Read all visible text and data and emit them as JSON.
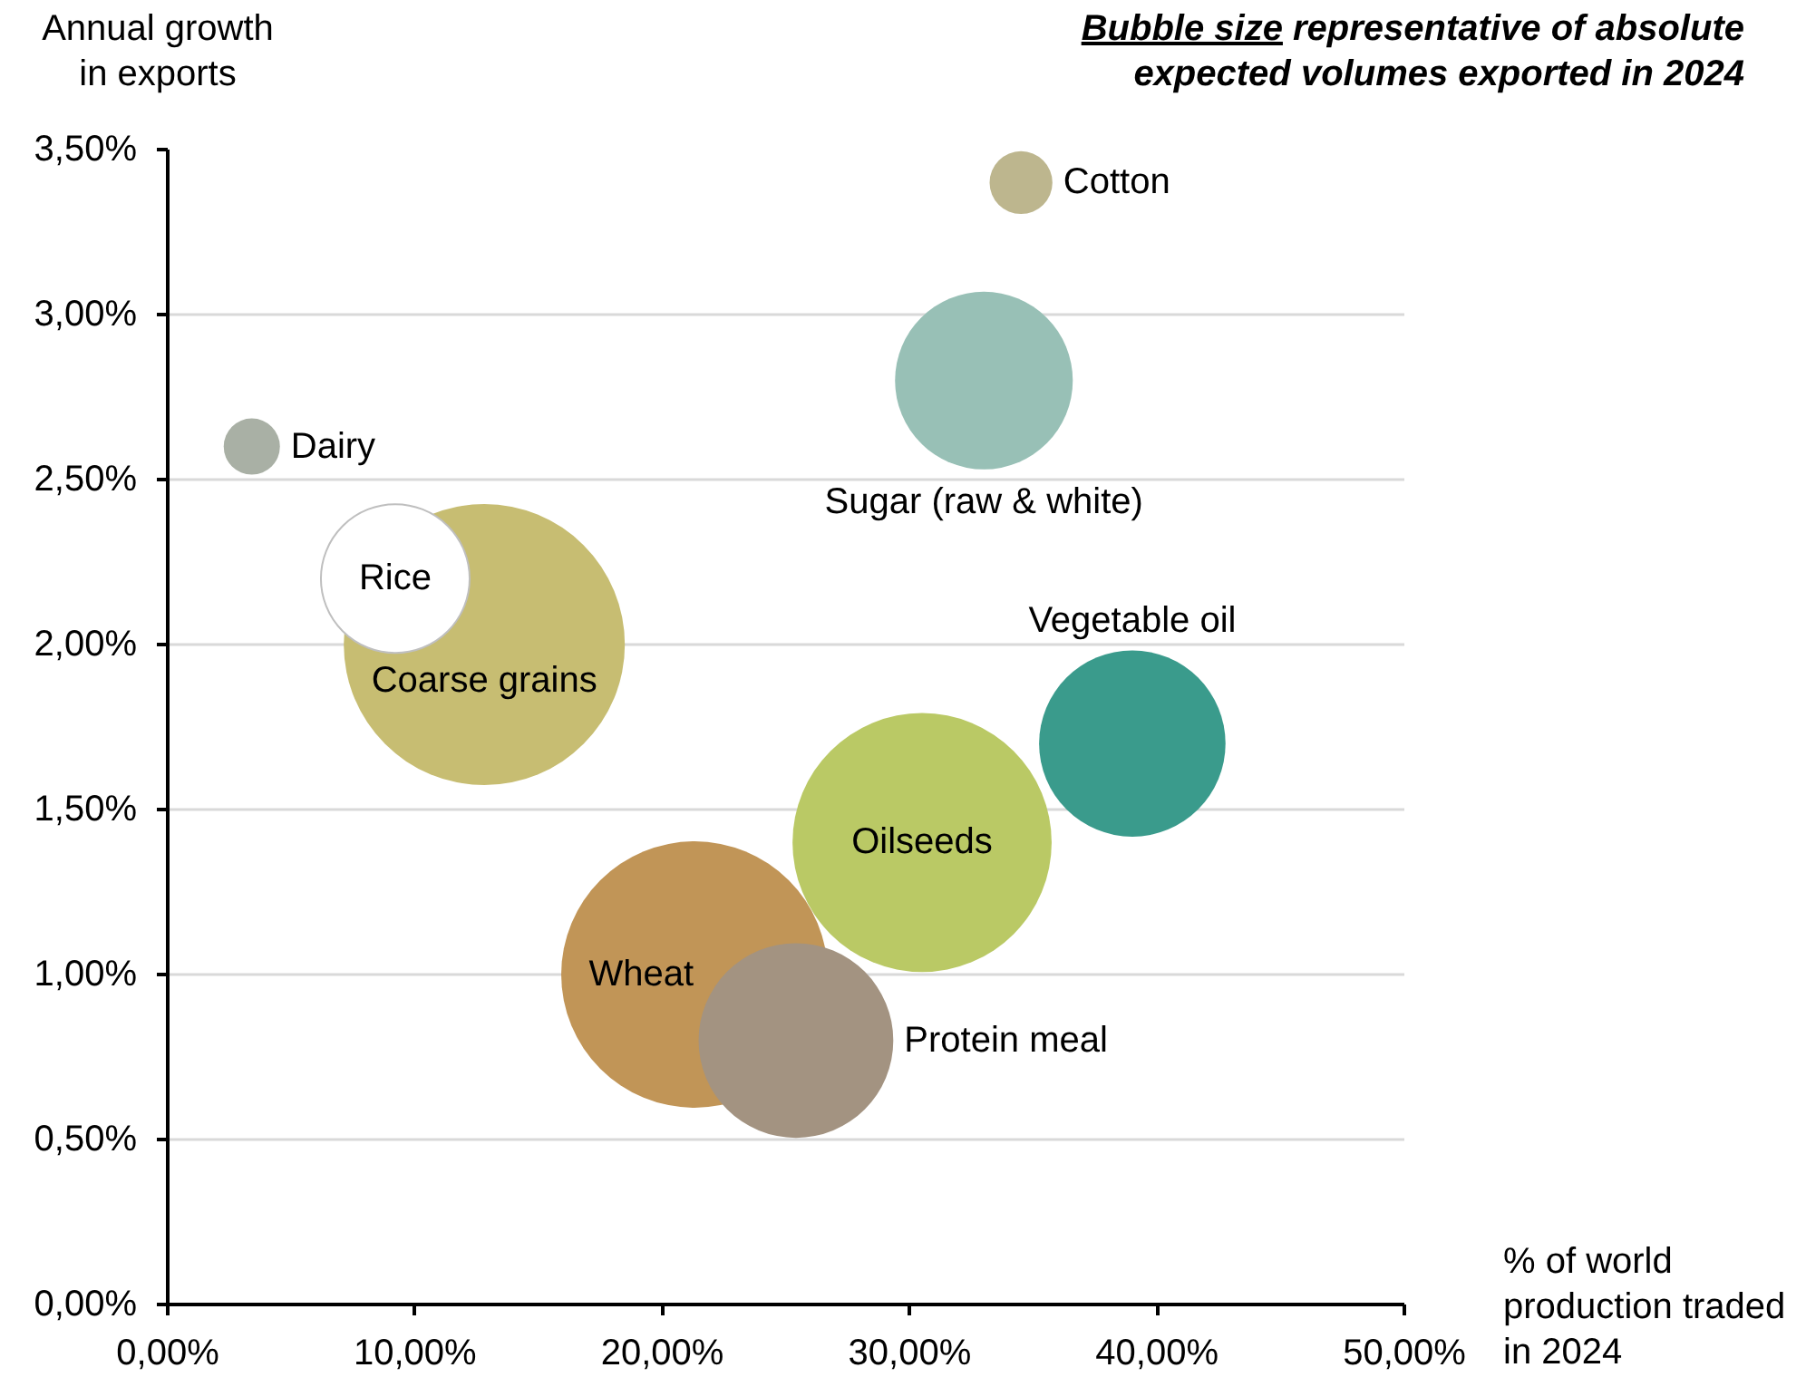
{
  "chart_data": {
    "type": "bubble",
    "title": "Bubble size representative of absolute expected volumes exported in 2024",
    "xlabel": "% of world production traded in 2024",
    "ylabel": "Annual growth in exports",
    "xlim": [
      0,
      50
    ],
    "ylim": [
      0,
      3.5
    ],
    "xticks": [
      {
        "value": 0,
        "label": "0,00%"
      },
      {
        "value": 10,
        "label": "10,00%"
      },
      {
        "value": 20,
        "label": "20,00%"
      },
      {
        "value": 30,
        "label": "30,00%"
      },
      {
        "value": 40,
        "label": "40,00%"
      },
      {
        "value": 50,
        "label": "50,00%"
      }
    ],
    "yticks": [
      {
        "value": 0,
        "label": "0,00%"
      },
      {
        "value": 0.5,
        "label": "0,50%"
      },
      {
        "value": 1,
        "label": "1,00%"
      },
      {
        "value": 1.5,
        "label": "1,50%"
      },
      {
        "value": 2,
        "label": "2,00%"
      },
      {
        "value": 2.5,
        "label": "2,50%"
      },
      {
        "value": 3,
        "label": "3,00%"
      },
      {
        "value": 3.5,
        "label": "3,50%"
      }
    ],
    "grid": "y",
    "series": [
      {
        "name": "Dairy",
        "color": "#a9b0a5",
        "x": [
          3.4
        ],
        "values": [
          2.6
        ],
        "sizes": [
          0.04
        ]
      },
      {
        "name": "Coarse grains",
        "color": "#c7bd72",
        "x": [
          12.8
        ],
        "values": [
          2.0
        ],
        "sizes": [
          1.0
        ]
      },
      {
        "name": "Rice",
        "color": "#ffffff",
        "x": [
          9.2
        ],
        "values": [
          2.2
        ],
        "sizes": [
          0.28
        ]
      },
      {
        "name": "Sugar (raw & white)",
        "color": "#98c0b6",
        "x": [
          33.0
        ],
        "values": [
          2.8
        ],
        "sizes": [
          0.4
        ]
      },
      {
        "name": "Cotton",
        "color": "#bdb68e",
        "x": [
          34.5
        ],
        "values": [
          3.4
        ],
        "sizes": [
          0.05
        ]
      },
      {
        "name": "Wheat",
        "color": "#c19557",
        "x": [
          21.3
        ],
        "values": [
          1.0
        ],
        "sizes": [
          0.9
        ]
      },
      {
        "name": "Protein meal",
        "color": "#a39381",
        "x": [
          25.4
        ],
        "values": [
          0.8
        ],
        "sizes": [
          0.48
        ]
      },
      {
        "name": "Oilseeds",
        "color": "#bac965",
        "x": [
          30.5
        ],
        "values": [
          1.4
        ],
        "sizes": [
          0.85
        ]
      },
      {
        "name": "Vegetable oil",
        "color": "#3a9b8c",
        "x": [
          39.0
        ],
        "values": [
          1.7
        ],
        "sizes": [
          0.44
        ]
      }
    ]
  }
}
